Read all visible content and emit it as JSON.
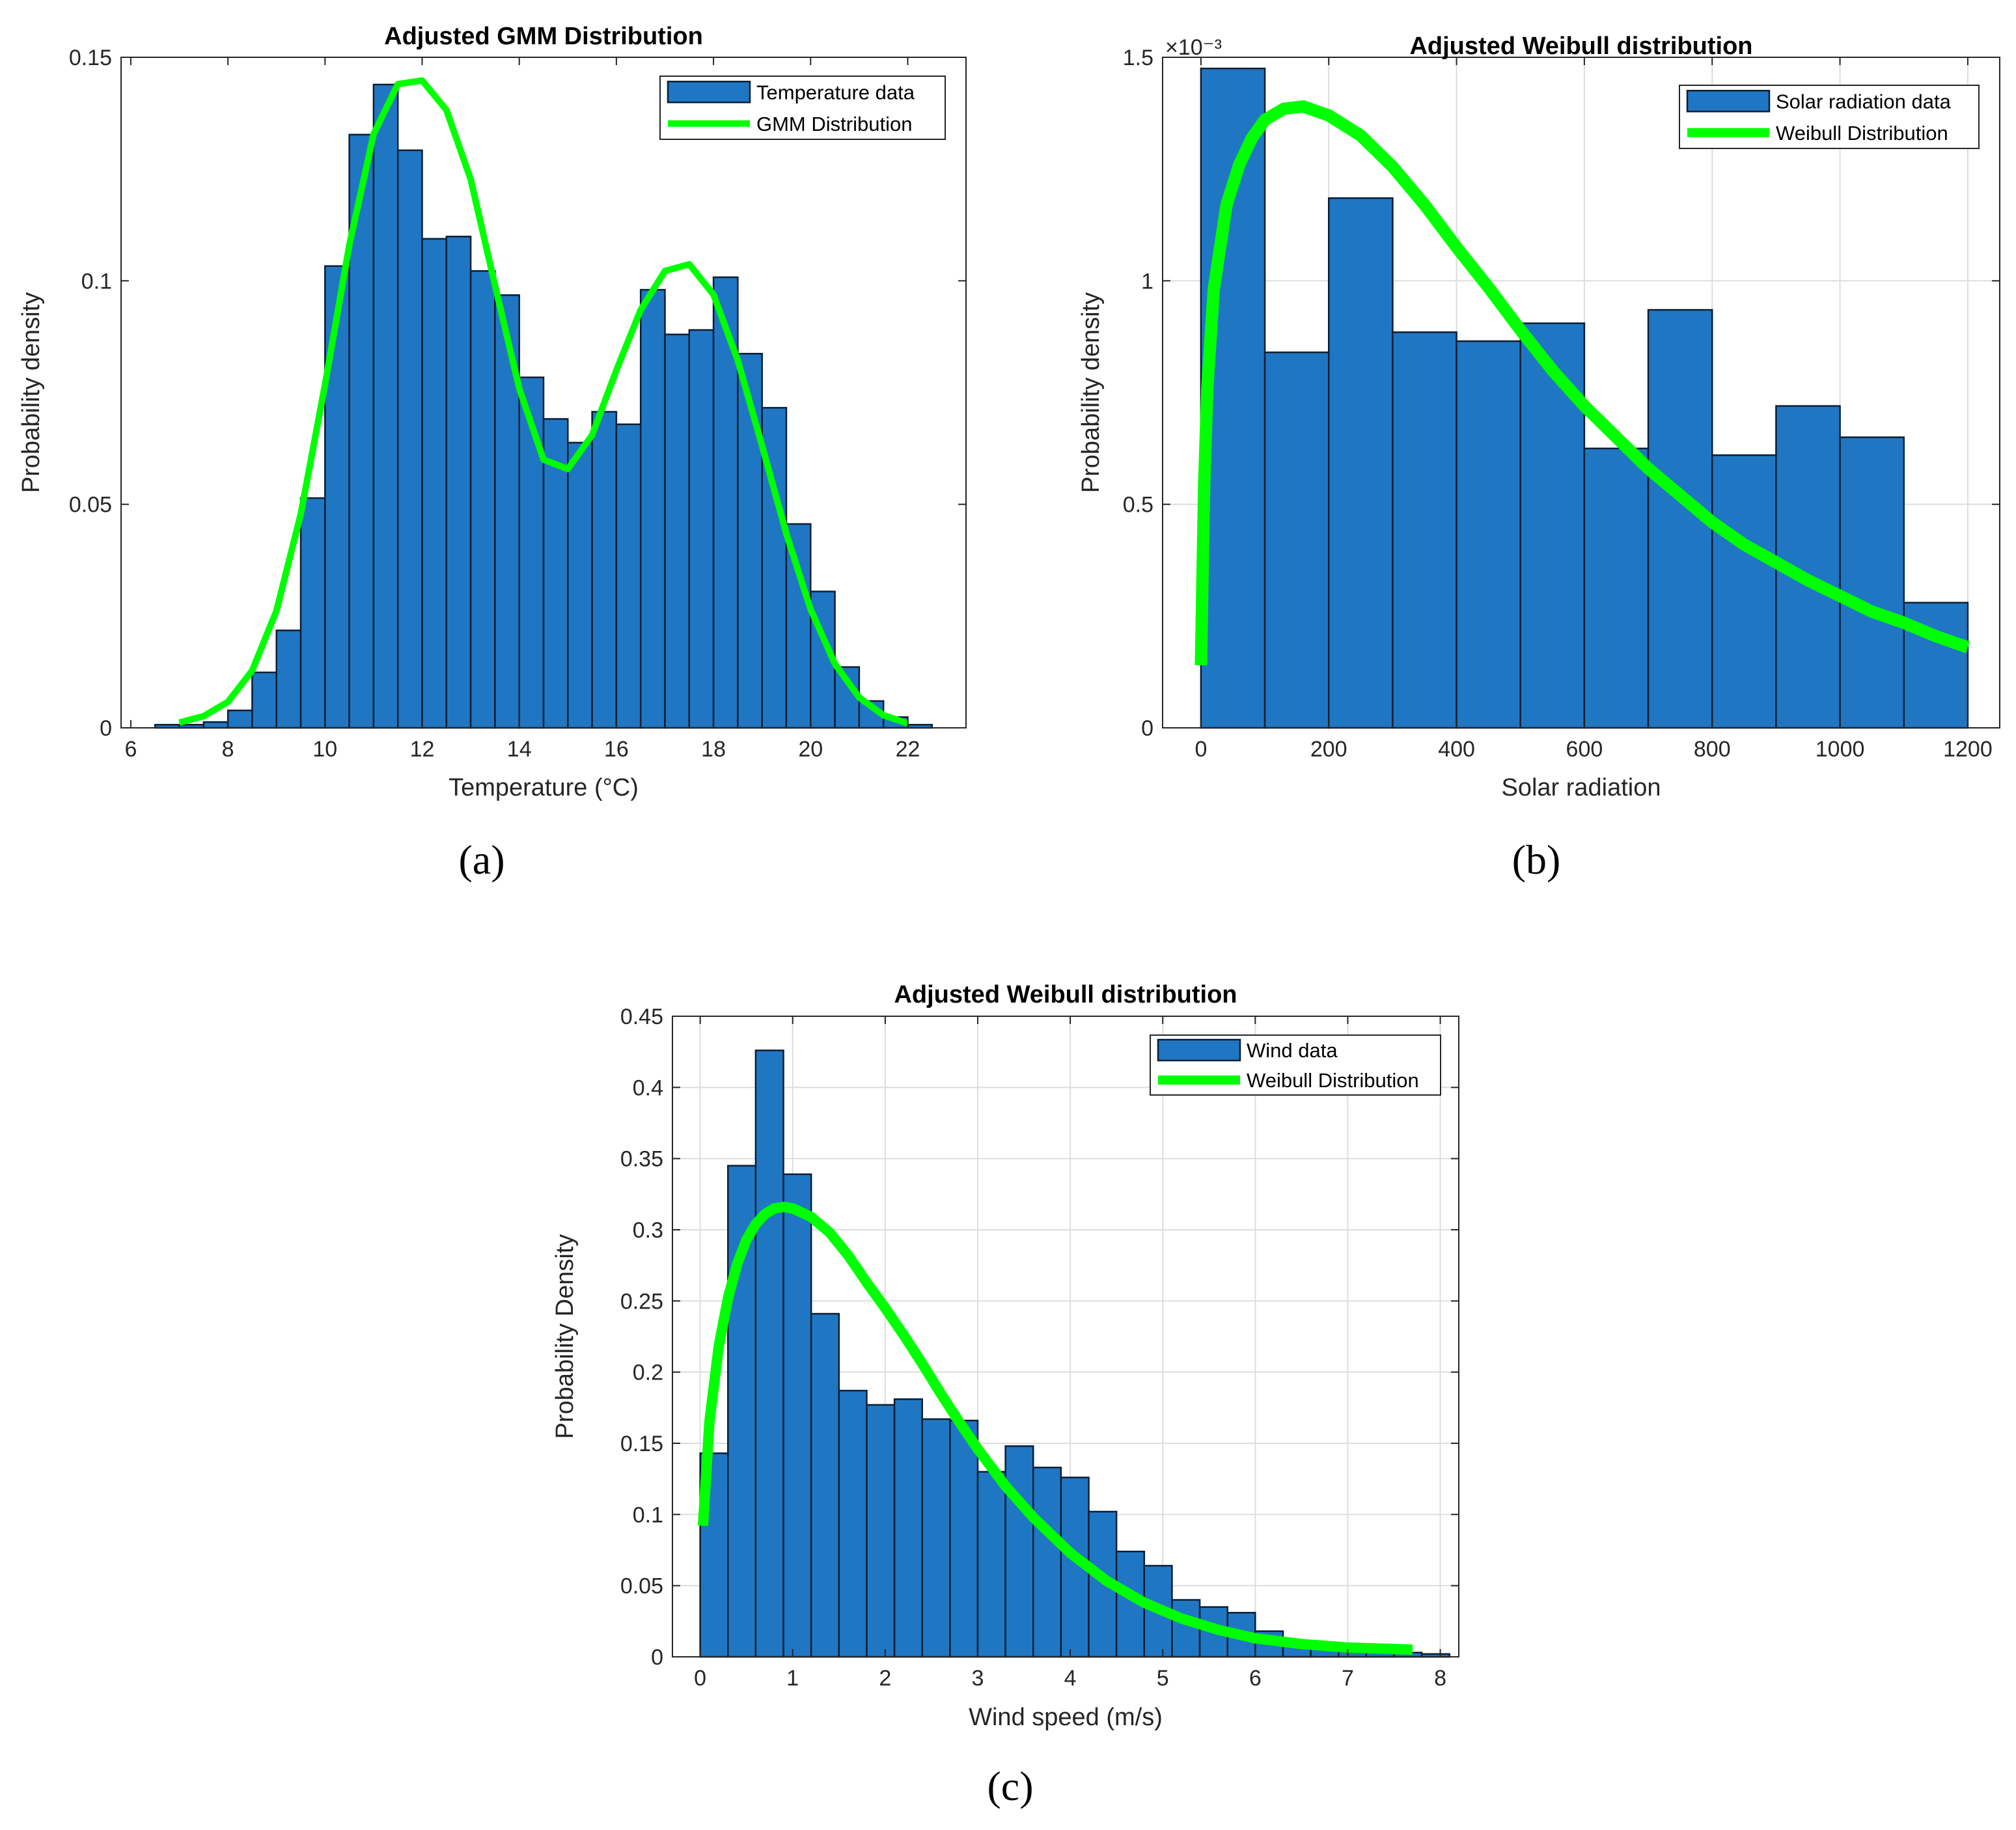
{
  "figure_captions": [
    "(a)",
    "(b)",
    "(c)"
  ],
  "colors": {
    "bar": "#1f77c4",
    "bar_edge": "#0b1e33",
    "curve": "#00ff00",
    "grid": "#dddddd",
    "axes": "#262626"
  },
  "chart_data": [
    {
      "id": "a",
      "type": "bar",
      "title": "Adjusted GMM Distribution",
      "xlabel": "Temperature (°C)",
      "ylabel": "Probability density",
      "xlim": [
        5.8,
        23.2
      ],
      "ylim": [
        0,
        0.15
      ],
      "grid": false,
      "x_ticks": [
        6,
        8,
        10,
        12,
        14,
        16,
        18,
        20,
        22
      ],
      "x_tick_labels": [
        "6",
        "8",
        "10",
        "12",
        "14",
        "16",
        "18",
        "20",
        "22"
      ],
      "y_ticks": [
        0,
        0.05,
        0.1,
        0.15
      ],
      "y_tick_labels": [
        "0",
        "0.05",
        "0.1",
        "0.15"
      ],
      "y_multiplier": "",
      "legend": {
        "position": "top-right",
        "entries": [
          "Temperature data",
          "GMM Distribution"
        ]
      },
      "bins": {
        "start": 6.5,
        "width": 0.5,
        "values": [
          0.0007,
          0.0007,
          0.0013,
          0.0039,
          0.0124,
          0.0218,
          0.0514,
          0.1033,
          0.1327,
          0.1439,
          0.1292,
          0.1094,
          0.1099,
          0.1022,
          0.0968,
          0.0784,
          0.0691,
          0.0638,
          0.0707,
          0.0679,
          0.098,
          0.088,
          0.089,
          0.1008,
          0.0837,
          0.0716,
          0.0456,
          0.0305,
          0.0136,
          0.006,
          0.0024,
          0.0007
        ]
      },
      "curve": {
        "name": "GMM Distribution",
        "x": [
          7,
          7.5,
          8,
          8.5,
          9,
          9.5,
          10,
          10.5,
          11,
          11.5,
          12,
          12.5,
          13,
          13.5,
          14,
          14.5,
          15,
          15.5,
          16,
          16.5,
          17,
          17.5,
          18,
          18.5,
          19,
          19.5,
          20,
          20.5,
          21,
          21.5,
          22
        ],
        "y": [
          0.0012,
          0.0026,
          0.0058,
          0.0128,
          0.0262,
          0.0478,
          0.0768,
          0.108,
          0.1328,
          0.144,
          0.1448,
          0.1382,
          0.1227,
          0.099,
          0.0759,
          0.06,
          0.0579,
          0.0655,
          0.08,
          0.0935,
          0.1022,
          0.1037,
          0.0969,
          0.0822,
          0.0631,
          0.0434,
          0.0265,
          0.0143,
          0.0068,
          0.0028,
          0.001
        ]
      }
    },
    {
      "id": "b",
      "type": "bar",
      "title": "Adjusted Weibull distribution",
      "xlabel": "Solar radiation",
      "ylabel": "Probability density",
      "xlim": [
        -60,
        1250
      ],
      "ylim": [
        0,
        1.5
      ],
      "grid": true,
      "x_ticks": [
        0,
        200,
        400,
        600,
        800,
        1000,
        1200
      ],
      "x_tick_labels": [
        "0",
        "200",
        "400",
        "600",
        "800",
        "1000",
        "1200"
      ],
      "y_ticks": [
        0,
        0.5,
        1,
        1.5
      ],
      "y_tick_labels": [
        "0",
        "0.5",
        "1",
        "1.5"
      ],
      "y_multiplier": "×10⁻³",
      "legend": {
        "position": "top-right",
        "entries": [
          "Solar radiation data",
          "Weibull Distribution"
        ]
      },
      "bins": {
        "start": 0,
        "width": 100,
        "values": [
          1.475,
          0.84,
          1.185,
          0.885,
          0.865,
          0.905,
          0.625,
          0.935,
          0.61,
          0.72,
          0.65,
          0.28
        ]
      },
      "curve": {
        "name": "Weibull Distribution",
        "x": [
          0,
          5,
          10,
          20,
          40,
          60,
          80,
          100,
          130,
          160,
          200,
          250,
          300,
          350,
          400,
          450,
          500,
          550,
          600,
          650,
          700,
          750,
          800,
          850,
          900,
          950,
          1000,
          1050,
          1100,
          1150,
          1200
        ],
        "y": [
          0.14,
          0.54,
          0.76,
          0.98,
          1.17,
          1.26,
          1.32,
          1.36,
          1.385,
          1.39,
          1.37,
          1.325,
          1.255,
          1.17,
          1.075,
          0.985,
          0.89,
          0.8,
          0.72,
          0.65,
          0.58,
          0.52,
          0.46,
          0.41,
          0.37,
          0.33,
          0.295,
          0.26,
          0.235,
          0.205,
          0.18
        ]
      }
    },
    {
      "id": "c",
      "type": "bar",
      "title": "Adjusted Weibull distribution",
      "xlabel": "Wind speed (m/s)",
      "ylabel": "Probability Density",
      "xlim": [
        -0.3,
        8.2
      ],
      "ylim": [
        0,
        0.45
      ],
      "grid": true,
      "x_ticks": [
        0,
        1,
        2,
        3,
        4,
        5,
        6,
        7,
        8
      ],
      "x_tick_labels": [
        "0",
        "1",
        "2",
        "3",
        "4",
        "5",
        "6",
        "7",
        "8"
      ],
      "y_ticks": [
        0,
        0.05,
        0.1,
        0.15,
        0.2,
        0.25,
        0.3,
        0.35,
        0.4,
        0.45
      ],
      "y_tick_labels": [
        "0",
        "0.05",
        "0.1",
        "0.15",
        "0.2",
        "0.25",
        "0.3",
        "0.35",
        "0.4",
        "0.45"
      ],
      "y_multiplier": "",
      "legend": {
        "position": "top-right",
        "entries": [
          "Wind data",
          "Weibull Distribution"
        ]
      },
      "bins": {
        "start": 0,
        "width": 0.3,
        "values": [
          0.143,
          0.345,
          0.426,
          0.339,
          0.241,
          0.187,
          0.177,
          0.181,
          0.167,
          0.166,
          0.13,
          0.148,
          0.133,
          0.126,
          0.102,
          0.074,
          0.064,
          0.04,
          0.035,
          0.031,
          0.018,
          0.008,
          0.007,
          0.005,
          0.003,
          0.003,
          0.002
        ]
      },
      "curve": {
        "name": "Weibull Distribution",
        "x": [
          0.03,
          0.1,
          0.2,
          0.3,
          0.4,
          0.5,
          0.6,
          0.7,
          0.8,
          0.9,
          1.0,
          1.2,
          1.4,
          1.6,
          1.8,
          2.0,
          2.2,
          2.4,
          2.6,
          2.8,
          3.0,
          3.3,
          3.6,
          4.0,
          4.4,
          4.8,
          5.2,
          5.6,
          6.0,
          6.5,
          7.0,
          7.5,
          7.7
        ],
        "y": [
          0.092,
          0.165,
          0.218,
          0.252,
          0.276,
          0.293,
          0.304,
          0.311,
          0.315,
          0.316,
          0.315,
          0.309,
          0.298,
          0.282,
          0.263,
          0.245,
          0.226,
          0.206,
          0.185,
          0.165,
          0.146,
          0.12,
          0.098,
          0.073,
          0.053,
          0.038,
          0.027,
          0.019,
          0.013,
          0.009,
          0.0065,
          0.0055,
          0.005
        ]
      }
    }
  ]
}
